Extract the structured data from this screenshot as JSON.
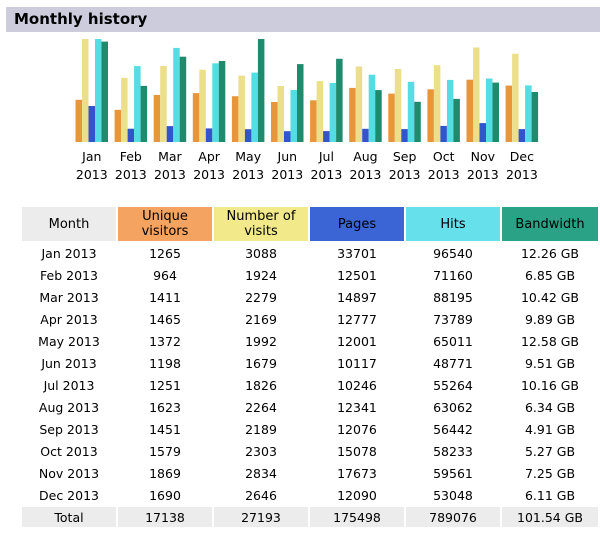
{
  "section_title": "Monthly history",
  "colors": {
    "visitors": "#f4a460",
    "visits": "#f2ea8a",
    "pages": "#3b64d4",
    "hits": "#66e0ea",
    "bandwidth": "#2aa286",
    "header_bg": "#ccccdd"
  },
  "table": {
    "headers": {
      "month": "Month",
      "visitors": "Unique visitors",
      "visits": "Number of visits",
      "pages": "Pages",
      "hits": "Hits",
      "bandwidth": "Bandwidth"
    },
    "rows": [
      {
        "month": "Jan 2013",
        "visitors": "1265",
        "visits": "3088",
        "pages": "33701",
        "hits": "96540",
        "bandwidth": "12.26 GB"
      },
      {
        "month": "Feb 2013",
        "visitors": "964",
        "visits": "1924",
        "pages": "12501",
        "hits": "71160",
        "bandwidth": "6.85 GB"
      },
      {
        "month": "Mar 2013",
        "visitors": "1411",
        "visits": "2279",
        "pages": "14897",
        "hits": "88195",
        "bandwidth": "10.42 GB"
      },
      {
        "month": "Apr 2013",
        "visitors": "1465",
        "visits": "2169",
        "pages": "12777",
        "hits": "73789",
        "bandwidth": "9.89 GB"
      },
      {
        "month": "May 2013",
        "visitors": "1372",
        "visits": "1992",
        "pages": "12001",
        "hits": "65011",
        "bandwidth": "12.58 GB"
      },
      {
        "month": "Jun 2013",
        "visitors": "1198",
        "visits": "1679",
        "pages": "10117",
        "hits": "48771",
        "bandwidth": "9.51 GB"
      },
      {
        "month": "Jul 2013",
        "visitors": "1251",
        "visits": "1826",
        "pages": "10246",
        "hits": "55264",
        "bandwidth": "10.16 GB"
      },
      {
        "month": "Aug 2013",
        "visitors": "1623",
        "visits": "2264",
        "pages": "12341",
        "hits": "63062",
        "bandwidth": "6.34 GB"
      },
      {
        "month": "Sep 2013",
        "visitors": "1451",
        "visits": "2189",
        "pages": "12076",
        "hits": "56442",
        "bandwidth": "4.91 GB"
      },
      {
        "month": "Oct 2013",
        "visitors": "1579",
        "visits": "2303",
        "pages": "15078",
        "hits": "58233",
        "bandwidth": "5.27 GB"
      },
      {
        "month": "Nov 2013",
        "visitors": "1869",
        "visits": "2834",
        "pages": "17673",
        "hits": "59561",
        "bandwidth": "7.25 GB"
      },
      {
        "month": "Dec 2013",
        "visitors": "1690",
        "visits": "2646",
        "pages": "12090",
        "hits": "53048",
        "bandwidth": "6.11 GB"
      }
    ],
    "total": {
      "label": "Total",
      "visitors": "17138",
      "visits": "27193",
      "pages": "175498",
      "hits": "789076",
      "bandwidth": "101.54 GB"
    }
  },
  "chart_data": {
    "type": "bar",
    "categories": [
      [
        "Jan",
        "2013"
      ],
      [
        "Feb",
        "2013"
      ],
      [
        "Mar",
        "2013"
      ],
      [
        "Apr",
        "2013"
      ],
      [
        "May",
        "2013"
      ],
      [
        "Jun",
        "2013"
      ],
      [
        "Jul",
        "2013"
      ],
      [
        "Aug",
        "2013"
      ],
      [
        "Sep",
        "2013"
      ],
      [
        "Oct",
        "2013"
      ],
      [
        "Nov",
        "2013"
      ],
      [
        "Dec",
        "2013"
      ]
    ],
    "series": [
      {
        "name": "Unique visitors",
        "color": "#e8963c",
        "values": [
          1265,
          964,
          1411,
          1465,
          1372,
          1198,
          1251,
          1623,
          1451,
          1579,
          1869,
          1690
        ]
      },
      {
        "name": "Number of visits",
        "color": "#ecdf8c",
        "values": [
          3088,
          1924,
          2279,
          2169,
          1992,
          1679,
          1826,
          2264,
          2189,
          2303,
          2834,
          2646
        ]
      },
      {
        "name": "Pages",
        "color": "#3355cc",
        "values": [
          33701,
          12501,
          14897,
          12777,
          12001,
          10117,
          10246,
          12341,
          12076,
          15078,
          17673,
          12090
        ]
      },
      {
        "name": "Hits",
        "color": "#55dde4",
        "values": [
          96540,
          71160,
          88195,
          73789,
          65011,
          48771,
          55264,
          63062,
          56442,
          58233,
          59561,
          53048
        ]
      },
      {
        "name": "Bandwidth",
        "color": "#1f8a6c",
        "values": [
          12.26,
          6.85,
          10.42,
          9.89,
          12.58,
          9.51,
          10.16,
          6.34,
          4.91,
          5.27,
          7.25,
          6.11
        ]
      }
    ],
    "scale_groups": [
      [
        0,
        1
      ],
      [
        2,
        3
      ],
      [
        4
      ]
    ]
  }
}
